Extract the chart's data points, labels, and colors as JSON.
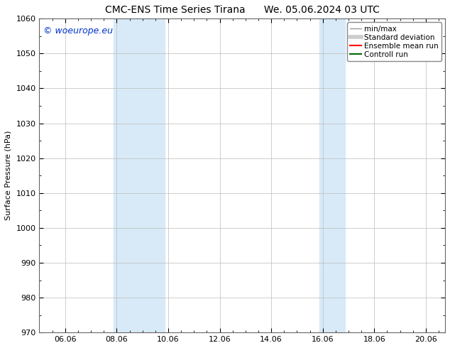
{
  "title": "CMC-ENS Time Series Tirana      We. 05.06.2024 03 UTC",
  "ylabel": "Surface Pressure (hPa)",
  "ylim": [
    970,
    1060
  ],
  "yticks": [
    970,
    980,
    990,
    1000,
    1010,
    1020,
    1030,
    1040,
    1050,
    1060
  ],
  "xlim": [
    0.0,
    15.75
  ],
  "xtick_positions": [
    1.0,
    3.0,
    5.0,
    7.0,
    9.0,
    11.0,
    13.0,
    15.0
  ],
  "xtick_labels": [
    "06.06",
    "08.06",
    "10.06",
    "12.06",
    "14.06",
    "16.06",
    "18.06",
    "20.06"
  ],
  "shaded_bands": [
    {
      "x_start": 2.875,
      "x_end": 4.875
    },
    {
      "x_start": 10.875,
      "x_end": 11.875
    }
  ],
  "shaded_color": "#d8eaf8",
  "watermark_text": "© woeurope.eu",
  "watermark_color": "#0033cc",
  "legend_items": [
    {
      "label": "min/max",
      "color": "#999999",
      "lw": 1.0
    },
    {
      "label": "Standard deviation",
      "color": "#cccccc",
      "lw": 4.0
    },
    {
      "label": "Ensemble mean run",
      "color": "#ff0000",
      "lw": 1.5
    },
    {
      "label": "Controll run",
      "color": "#006600",
      "lw": 1.5
    }
  ],
  "grid_color": "#bbbbbb",
  "bg_color": "#ffffff",
  "title_fontsize": 10,
  "ylabel_fontsize": 8,
  "tick_fontsize": 8,
  "legend_fontsize": 7.5,
  "watermark_fontsize": 9
}
